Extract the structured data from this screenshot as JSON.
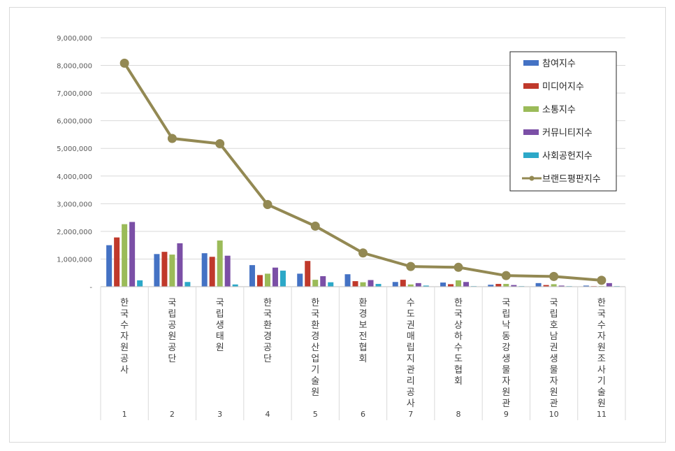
{
  "chart_data": {
    "type": "bar",
    "title": "",
    "xlabel": "",
    "ylabel": "",
    "ylim": [
      0,
      9000000
    ],
    "yticks": [
      "-",
      "1,000,000",
      "2,000,000",
      "3,000,000",
      "4,000,000",
      "5,000,000",
      "6,000,000",
      "7,000,000",
      "8,000,000",
      "9,000,000"
    ],
    "grid": true,
    "legend_position": "top-right",
    "categories": [
      "한국수자원공사",
      "국립공원공단",
      "국립생태원",
      "한국환경공단",
      "한국환경산업기술원",
      "환경보전협회",
      "수도권매립지관리공사",
      "한국상하수도협회",
      "국립낙동강생물자원관",
      "국립호남권생물자원관",
      "한국수자원조사기술원"
    ],
    "ranks": [
      "1",
      "2",
      "3",
      "4",
      "5",
      "6",
      "7",
      "8",
      "9",
      "10",
      "11"
    ],
    "series": [
      {
        "name": "참여지수",
        "kind": "bar",
        "color": "#4472c4",
        "values": [
          1500000,
          1180000,
          1210000,
          780000,
          470000,
          450000,
          170000,
          150000,
          70000,
          130000,
          40000
        ]
      },
      {
        "name": "미디어지수",
        "kind": "bar",
        "color": "#c0392b",
        "values": [
          1780000,
          1260000,
          1080000,
          420000,
          930000,
          200000,
          250000,
          90000,
          100000,
          60000,
          15000
        ]
      },
      {
        "name": "소통지수",
        "kind": "bar",
        "color": "#9bbb59",
        "values": [
          2260000,
          1160000,
          1670000,
          470000,
          250000,
          160000,
          80000,
          230000,
          100000,
          90000,
          15000
        ]
      },
      {
        "name": "커뮤니티지수",
        "kind": "bar",
        "color": "#7b4fa6",
        "values": [
          2340000,
          1570000,
          1120000,
          690000,
          380000,
          240000,
          130000,
          170000,
          60000,
          40000,
          130000
        ]
      },
      {
        "name": "사회공헌지수",
        "kind": "bar",
        "color": "#2ca8c8",
        "values": [
          230000,
          170000,
          80000,
          580000,
          160000,
          100000,
          40000,
          10000,
          10000,
          10000,
          10000
        ]
      },
      {
        "name": "브랜드평판지수",
        "kind": "line",
        "color": "#938953",
        "values": [
          8080000,
          5360000,
          5170000,
          2970000,
          2190000,
          1220000,
          730000,
          700000,
          400000,
          370000,
          230000
        ]
      }
    ]
  }
}
